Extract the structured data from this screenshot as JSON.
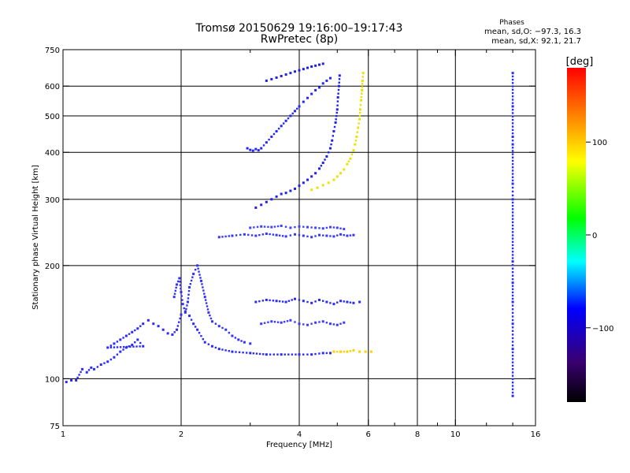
{
  "header": {
    "title": "Tromsø 20150629 19:16:00–19:17:43",
    "subtitle": "RwPretec (8p)"
  },
  "phases_box": {
    "heading": "Phases",
    "line_o": "mean, sd,O: −97.3, 16.3",
    "line_x": "mean, sd,X:  92.1, 21.7"
  },
  "chart_data": {
    "type": "scatter",
    "title": "Tromsø 20150629 19:16:00–19:17:43",
    "subtitle": "RwPretec (8p)",
    "xlabel": "Frequency [MHz]",
    "ylabel": "Stationary phase Virtual Height [km]",
    "x_scale": "log",
    "y_scale": "log",
    "xlim": [
      1,
      16
    ],
    "ylim": [
      75,
      750
    ],
    "x_ticks": [
      1,
      2,
      4,
      6,
      8,
      10,
      16
    ],
    "x_tick_labels": [
      "1",
      "2",
      "4",
      "6",
      "8",
      "10",
      "16"
    ],
    "x_minor_ticks": [
      3,
      5,
      7,
      9,
      12,
      14
    ],
    "y_ticks": [
      75,
      100,
      200,
      300,
      400,
      500,
      600,
      750
    ],
    "y_tick_labels": [
      "75",
      "100",
      "200",
      "300",
      "400",
      "500",
      "600",
      "750"
    ],
    "grid": true,
    "grid_x": [
      2,
      4,
      6,
      8,
      10
    ],
    "grid_y": [
      100,
      200,
      300,
      400,
      500,
      600
    ],
    "colorbar": {
      "label": "[deg]",
      "range": [
        -180,
        180
      ],
      "ticks": [
        100,
        0,
        -100
      ],
      "tick_labels": [
        "100",
        "0",
        "−100"
      ],
      "colormap": [
        "#000000",
        "#3a0070",
        "#0000ff",
        "#00ffff",
        "#00ff00",
        "#ffff00",
        "#ff8000",
        "#ff0000"
      ]
    },
    "series": [
      {
        "phase": -97,
        "color": "#2a2aff",
        "x": [
          1.02,
          1.05,
          1.08,
          1.12,
          1.15,
          1.18,
          1.2,
          1.25,
          1.3,
          1.35,
          1.4,
          1.45,
          1.5,
          1.55,
          1.6,
          1.3,
          1.35,
          1.4,
          1.45,
          1.5,
          1.55,
          1.6,
          1.65,
          1.7,
          1.75,
          1.8,
          1.85,
          1.9,
          1.95,
          2.0,
          2.05,
          2.1,
          2.15,
          2.2,
          2.3,
          2.4,
          2.5,
          2.7,
          3.0,
          3.3,
          3.6,
          4.0,
          4.3,
          4.6,
          4.8
        ],
        "y": [
          98,
          99,
          99,
          106,
          104,
          107,
          106,
          109,
          111,
          114,
          118,
          121,
          123,
          127,
          122,
          121,
          124,
          127,
          130,
          133,
          136,
          140,
          143,
          140,
          138,
          135,
          132,
          131,
          135,
          148,
          151,
          147,
          140,
          135,
          125,
          122,
          120,
          118,
          117,
          116,
          116,
          116,
          116,
          117,
          117
        ]
      },
      {
        "phase": -100,
        "color": "#3030ff",
        "x": [
          1.92,
          1.95,
          1.98,
          2.0,
          2.02,
          2.05,
          2.08,
          2.1,
          2.15,
          2.2,
          2.25,
          2.3,
          2.35,
          2.4,
          2.5,
          2.6,
          2.7,
          2.8,
          2.9,
          3.0
        ],
        "y": [
          165,
          178,
          185,
          170,
          158,
          150,
          160,
          175,
          190,
          200,
          182,
          165,
          150,
          142,
          138,
          135,
          130,
          127,
          125,
          124
        ]
      },
      {
        "phase": -95,
        "color": "#2020f0",
        "x": [
          3.1,
          3.2,
          3.3,
          3.4,
          3.5,
          3.6,
          3.7,
          3.8,
          3.9,
          4.0,
          4.1,
          4.2,
          4.3,
          4.4,
          4.5,
          4.6,
          4.7,
          4.8,
          4.85,
          4.9,
          4.95,
          5.0,
          5.02,
          5.05,
          5.07
        ],
        "y": [
          285,
          290,
          295,
          300,
          305,
          310,
          312,
          316,
          320,
          326,
          332,
          338,
          345,
          352,
          362,
          375,
          390,
          410,
          430,
          455,
          480,
          520,
          560,
          600,
          640
        ]
      },
      {
        "phase": -98,
        "color": "#2525ff",
        "x": [
          2.95,
          3.0,
          3.05,
          3.1,
          3.15,
          3.2,
          3.3,
          3.4,
          3.5,
          3.6,
          3.7,
          3.8,
          3.9,
          4.0,
          4.1,
          4.2,
          4.3,
          4.4,
          4.5,
          4.6,
          4.7,
          4.8
        ],
        "y": [
          410,
          406,
          404,
          408,
          405,
          410,
          425,
          440,
          455,
          470,
          485,
          500,
          515,
          530,
          545,
          558,
          572,
          585,
          595,
          610,
          620,
          630
        ]
      },
      {
        "phase": -96,
        "color": "#1f1fe8",
        "x": [
          3.3,
          3.4,
          3.5,
          3.6,
          3.7,
          3.8,
          3.9,
          4.0,
          4.1,
          4.2,
          4.3,
          4.4,
          4.5,
          4.6
        ],
        "y": [
          620,
          626,
          632,
          638,
          644,
          650,
          656,
          661,
          666,
          671,
          676,
          680,
          684,
          688
        ]
      },
      {
        "phase": -99,
        "color": "#3535ff",
        "x": [
          2.5,
          2.7,
          2.9,
          3.1,
          3.3,
          3.5,
          3.7,
          3.9,
          4.1,
          4.3,
          4.5,
          4.7,
          4.9,
          5.1,
          5.3,
          5.5
        ],
        "y": [
          238,
          240,
          242,
          240,
          243,
          241,
          239,
          242,
          240,
          238,
          241,
          240,
          239,
          242,
          240,
          241
        ]
      },
      {
        "phase": -101,
        "color": "#4040ff",
        "x": [
          3.0,
          3.2,
          3.4,
          3.6,
          3.8,
          4.0,
          4.2,
          4.4,
          4.6,
          4.8,
          5.0,
          5.2
        ],
        "y": [
          252,
          254,
          253,
          255,
          252,
          254,
          253,
          252,
          251,
          253,
          252,
          250
        ]
      },
      {
        "phase": 100,
        "color": "#f0e000",
        "x": [
          4.3,
          4.45,
          4.6,
          4.75,
          4.9,
          5.0,
          5.1,
          5.2,
          5.3,
          5.4,
          5.5,
          5.55,
          5.6,
          5.65,
          5.7,
          5.72,
          5.75,
          5.78,
          5.8,
          5.82
        ],
        "y": [
          318,
          322,
          327,
          332,
          338,
          345,
          352,
          360,
          372,
          385,
          405,
          420,
          440,
          465,
          490,
          520,
          550,
          585,
          620,
          650
        ]
      },
      {
        "phase": 90,
        "color": "#ffd000",
        "x": [
          4.9,
          5.1,
          5.3,
          5.5,
          5.7,
          5.9,
          6.1
        ],
        "y": [
          118,
          118,
          118,
          119,
          118,
          118,
          118
        ]
      },
      {
        "phase": -102,
        "color": "#2a2af8",
        "x": [
          3.1,
          3.3,
          3.5,
          3.7,
          3.9,
          4.1,
          4.3,
          4.5,
          4.7,
          4.9,
          5.1,
          5.3,
          5.5,
          5.7
        ],
        "y": [
          160,
          162,
          161,
          160,
          163,
          161,
          159,
          162,
          160,
          158,
          161,
          160,
          159,
          160
        ]
      },
      {
        "phase": -97,
        "color": "#3a3aff",
        "x": [
          3.2,
          3.4,
          3.6,
          3.8,
          4.0,
          4.2,
          4.4,
          4.6,
          4.8,
          5.0,
          5.2
        ],
        "y": [
          140,
          142,
          141,
          143,
          140,
          139,
          141,
          142,
          140,
          139,
          141
        ]
      },
      {
        "phase": -96,
        "color": "#2a2aff",
        "x": [
          14.0,
          14.0,
          14.0,
          14.0,
          14.0,
          14.0,
          14.0,
          14.0,
          14.0,
          14.0,
          14.0,
          14.0
        ],
        "y": [
          90,
          120,
          140,
          160,
          180,
          205,
          300,
          330,
          420,
          440,
          530,
          650
        ]
      }
    ]
  }
}
